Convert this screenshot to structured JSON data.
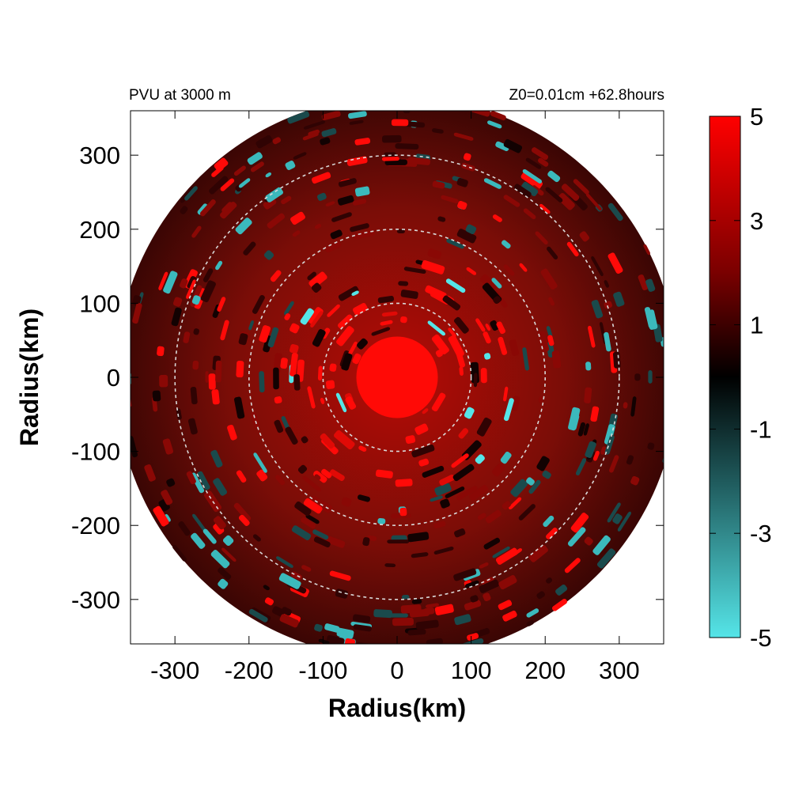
{
  "chart_data": {
    "type": "heatmap",
    "title_left": "PVU at  3000 m",
    "title_right": "Z0=0.01cm  +62.8hours",
    "xlabel": "Radius(km)",
    "ylabel": "Radius(km)",
    "xlim": [
      -360,
      360
    ],
    "ylim": [
      -360,
      360
    ],
    "x_ticks": [
      "-300",
      "-200",
      "-100",
      "0",
      "100",
      "200",
      "300"
    ],
    "y_ticks": [
      "300",
      "200",
      "100",
      "0",
      "-100",
      "-200",
      "-300"
    ],
    "x_tick_values": [
      -300,
      -200,
      -100,
      0,
      100,
      200,
      300
    ],
    "y_tick_values": [
      300,
      200,
      100,
      0,
      -100,
      -200,
      -300
    ],
    "domain_radius_km": 380,
    "range_rings_km": [
      100,
      200,
      300
    ],
    "core_radius_km": 55,
    "colorbar": {
      "range": [
        -5,
        5
      ],
      "tick_labels": [
        "5",
        "3",
        "1",
        "-1",
        "-3",
        "-5"
      ],
      "tick_values": [
        5,
        3,
        1,
        -1,
        -3,
        -5
      ],
      "colors": {
        "max": "#ff0000",
        "zero": "#000000",
        "min": "#55e5e8"
      }
    },
    "colors": {
      "ring": "#d9d9d9",
      "field_base": "#5a0a06"
    }
  }
}
